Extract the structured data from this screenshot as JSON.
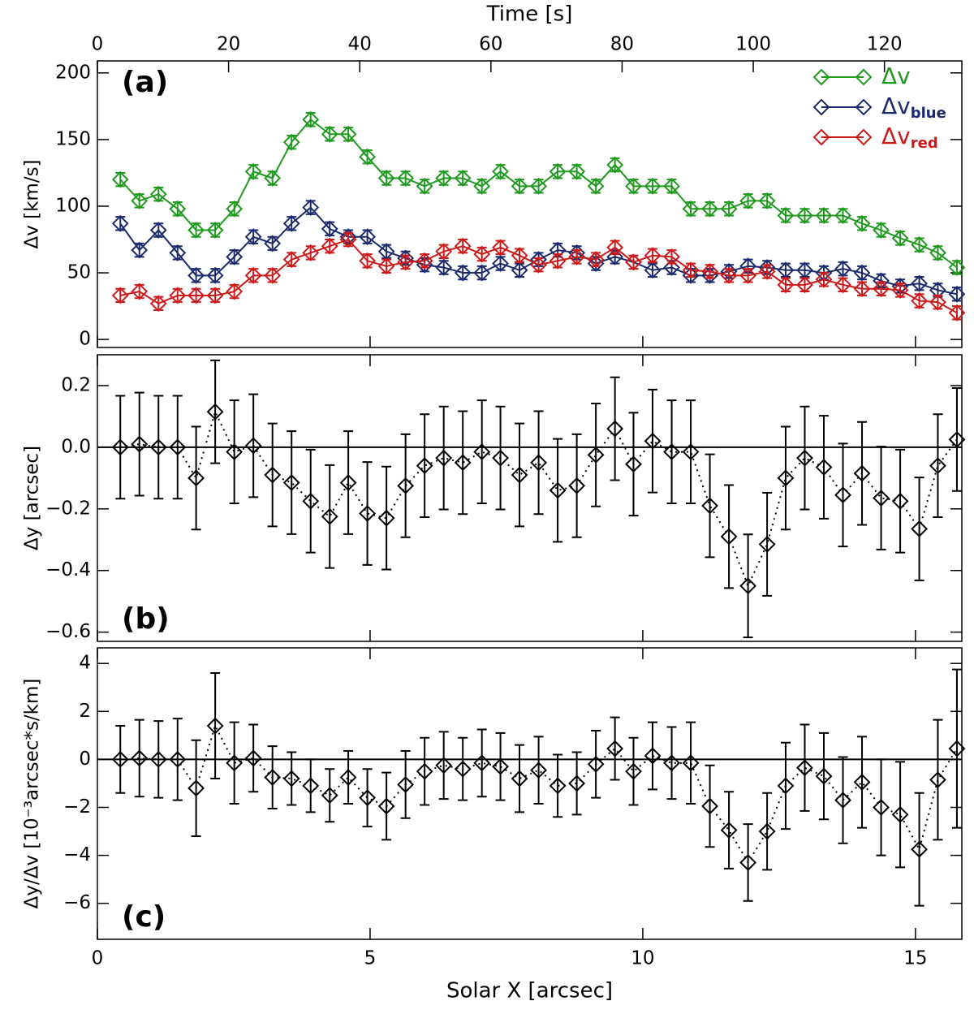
{
  "chart_data": [
    {
      "type": "line",
      "panel_label": "(a)",
      "ylabel": "Δv [km/s]",
      "x2label": "Time [s]",
      "xlim": [
        0,
        15.85
      ],
      "xticks": [
        0,
        5,
        10,
        15
      ],
      "x2lim": [
        0,
        131.8
      ],
      "x2ticks": [
        0,
        20,
        40,
        60,
        80,
        100,
        120
      ],
      "ylim": [
        -6,
        209
      ],
      "yticks": [
        0,
        50,
        100,
        150,
        200
      ],
      "legend": "upper right",
      "marker": "diamond",
      "linestyle": "solid",
      "x": [
        0.42,
        0.77,
        1.12,
        1.47,
        1.81,
        2.16,
        2.51,
        2.86,
        3.21,
        3.56,
        3.91,
        4.26,
        4.6,
        4.95,
        5.3,
        5.65,
        6.0,
        6.35,
        6.7,
        7.05,
        7.39,
        7.74,
        8.09,
        8.44,
        8.79,
        9.14,
        9.49,
        9.83,
        10.18,
        10.53,
        10.88,
        11.23,
        11.58,
        11.93,
        12.28,
        12.62,
        12.97,
        13.32,
        13.67,
        14.02,
        14.37,
        14.72,
        15.07,
        15.41,
        15.76
      ],
      "series": [
        {
          "name": "Δv",
          "color": "#1f9a1f",
          "error": 5,
          "values": [
            120,
            104,
            109,
            98,
            82,
            82,
            98,
            126,
            121,
            148,
            165,
            154,
            154,
            137,
            121,
            121,
            115,
            121,
            121,
            115,
            126,
            115,
            115,
            126,
            126,
            115,
            131,
            115,
            115,
            115,
            98,
            98,
            98,
            104,
            104,
            93,
            93,
            93,
            93,
            87,
            82,
            76,
            71,
            65,
            54
          ]
        },
        {
          "name": "Δv",
          "name_sub": "blue",
          "color": "#1a2a6c",
          "error": 5,
          "values": [
            87,
            67,
            82,
            65,
            48,
            48,
            62,
            77,
            72,
            87,
            99,
            83,
            77,
            77,
            66,
            61,
            56,
            54,
            50,
            50,
            57,
            52,
            60,
            67,
            65,
            57,
            62,
            58,
            52,
            54,
            48,
            48,
            51,
            55,
            54,
            52,
            52,
            50,
            53,
            50,
            44,
            40,
            42,
            37,
            34
          ]
        },
        {
          "name": "Δv",
          "name_sub": "red",
          "color": "#cc1a1a",
          "error": 5,
          "values": [
            33,
            36,
            27,
            33,
            33,
            33,
            36,
            48,
            48,
            60,
            65,
            70,
            75,
            59,
            55,
            58,
            59,
            66,
            70,
            64,
            69,
            63,
            56,
            59,
            62,
            60,
            69,
            58,
            63,
            62,
            52,
            51,
            48,
            48,
            51,
            41,
            41,
            45,
            41,
            38,
            38,
            37,
            29,
            28,
            20
          ]
        }
      ]
    },
    {
      "type": "line",
      "panel_label": "(b)",
      "ylabel": "Δy [arcsec]",
      "xlim": [
        0,
        15.85
      ],
      "xticks": [
        0,
        5,
        10,
        15
      ],
      "ylim": [
        -0.63,
        0.3
      ],
      "yticks": [
        {
          "value": 0.2,
          "label": "0.2"
        },
        {
          "value": 0,
          "label": "0.0"
        },
        {
          "value": -0.2,
          "label": "−0.2"
        },
        {
          "value": -0.4,
          "label": "−0.4"
        },
        {
          "value": -0.6,
          "label": "−0.6"
        }
      ],
      "hline": 0,
      "marker": "diamond",
      "linestyle": "dotted",
      "color": "#000000",
      "error": 0.167,
      "x": [
        0.42,
        0.77,
        1.12,
        1.47,
        1.81,
        2.16,
        2.51,
        2.86,
        3.21,
        3.56,
        3.91,
        4.26,
        4.6,
        4.95,
        5.3,
        5.65,
        6.0,
        6.35,
        6.7,
        7.05,
        7.39,
        7.74,
        8.09,
        8.44,
        8.79,
        9.14,
        9.49,
        9.83,
        10.18,
        10.53,
        10.88,
        11.23,
        11.58,
        11.93,
        12.28,
        12.62,
        12.97,
        13.32,
        13.67,
        14.02,
        14.37,
        14.72,
        15.07,
        15.41,
        15.76
      ],
      "values": [
        0,
        0.01,
        0,
        0,
        -0.1,
        0.115,
        -0.015,
        0.005,
        -0.09,
        -0.115,
        -0.175,
        -0.225,
        -0.115,
        -0.215,
        -0.23,
        -0.125,
        -0.06,
        -0.035,
        -0.05,
        -0.015,
        -0.035,
        -0.09,
        -0.05,
        -0.14,
        -0.125,
        -0.025,
        0.06,
        -0.055,
        0.02,
        -0.015,
        -0.015,
        -0.19,
        -0.29,
        -0.45,
        -0.315,
        -0.1,
        -0.035,
        -0.065,
        -0.155,
        -0.085,
        -0.165,
        -0.175,
        -0.265,
        -0.06,
        0.025
      ]
    },
    {
      "type": "line",
      "panel_label": "(c)",
      "ylabel": "Δy/Δv [10⁻³arcsec*s/km]",
      "xlabel": "Solar X [arcsec]",
      "xlim": [
        0,
        15.85
      ],
      "xticks": [
        0,
        5,
        10,
        15
      ],
      "ylim": [
        -7.5,
        4.65
      ],
      "yticks": [
        4,
        2,
        0,
        {
          "value": -2,
          "label": "−2"
        },
        {
          "value": -4,
          "label": "−4"
        },
        {
          "value": -6,
          "label": "−6"
        }
      ],
      "hline": 0,
      "marker": "diamond",
      "linestyle": "dotted",
      "color": "#000000",
      "x": [
        0.42,
        0.77,
        1.12,
        1.47,
        1.81,
        2.16,
        2.51,
        2.86,
        3.21,
        3.56,
        3.91,
        4.26,
        4.6,
        4.95,
        5.3,
        5.65,
        6.0,
        6.35,
        6.7,
        7.05,
        7.39,
        7.74,
        8.09,
        8.44,
        8.79,
        9.14,
        9.49,
        9.83,
        10.18,
        10.53,
        10.88,
        11.23,
        11.58,
        11.93,
        12.28,
        12.62,
        12.97,
        13.32,
        13.67,
        14.02,
        14.37,
        14.72,
        15.07,
        15.41,
        15.76
      ],
      "values": [
        0,
        0.05,
        0,
        0,
        -1.2,
        1.4,
        -0.15,
        0.05,
        -0.75,
        -0.8,
        -1.1,
        -1.5,
        -0.75,
        -1.6,
        -1.95,
        -1.05,
        -0.5,
        -0.25,
        -0.4,
        -0.15,
        -0.3,
        -0.8,
        -0.45,
        -1.1,
        -1.0,
        -0.2,
        0.45,
        -0.5,
        0.15,
        -0.15,
        -0.15,
        -1.95,
        -2.95,
        -4.3,
        -3.0,
        -1.1,
        -0.35,
        -0.7,
        -1.7,
        -0.95,
        -2.0,
        -2.3,
        -3.75,
        -0.85,
        0.45
      ],
      "errors": [
        1.4,
        1.6,
        1.6,
        1.7,
        2.0,
        2.2,
        1.7,
        1.4,
        1.3,
        1.1,
        1.1,
        1.1,
        1.1,
        1.2,
        1.4,
        1.4,
        1.4,
        1.4,
        1.3,
        1.4,
        1.4,
        1.4,
        1.4,
        1.3,
        1.3,
        1.4,
        1.3,
        1.4,
        1.4,
        1.5,
        1.7,
        1.7,
        1.6,
        1.6,
        1.6,
        1.8,
        1.8,
        1.8,
        1.8,
        1.9,
        2.0,
        2.2,
        2.35,
        2.5,
        3.3
      ]
    }
  ]
}
